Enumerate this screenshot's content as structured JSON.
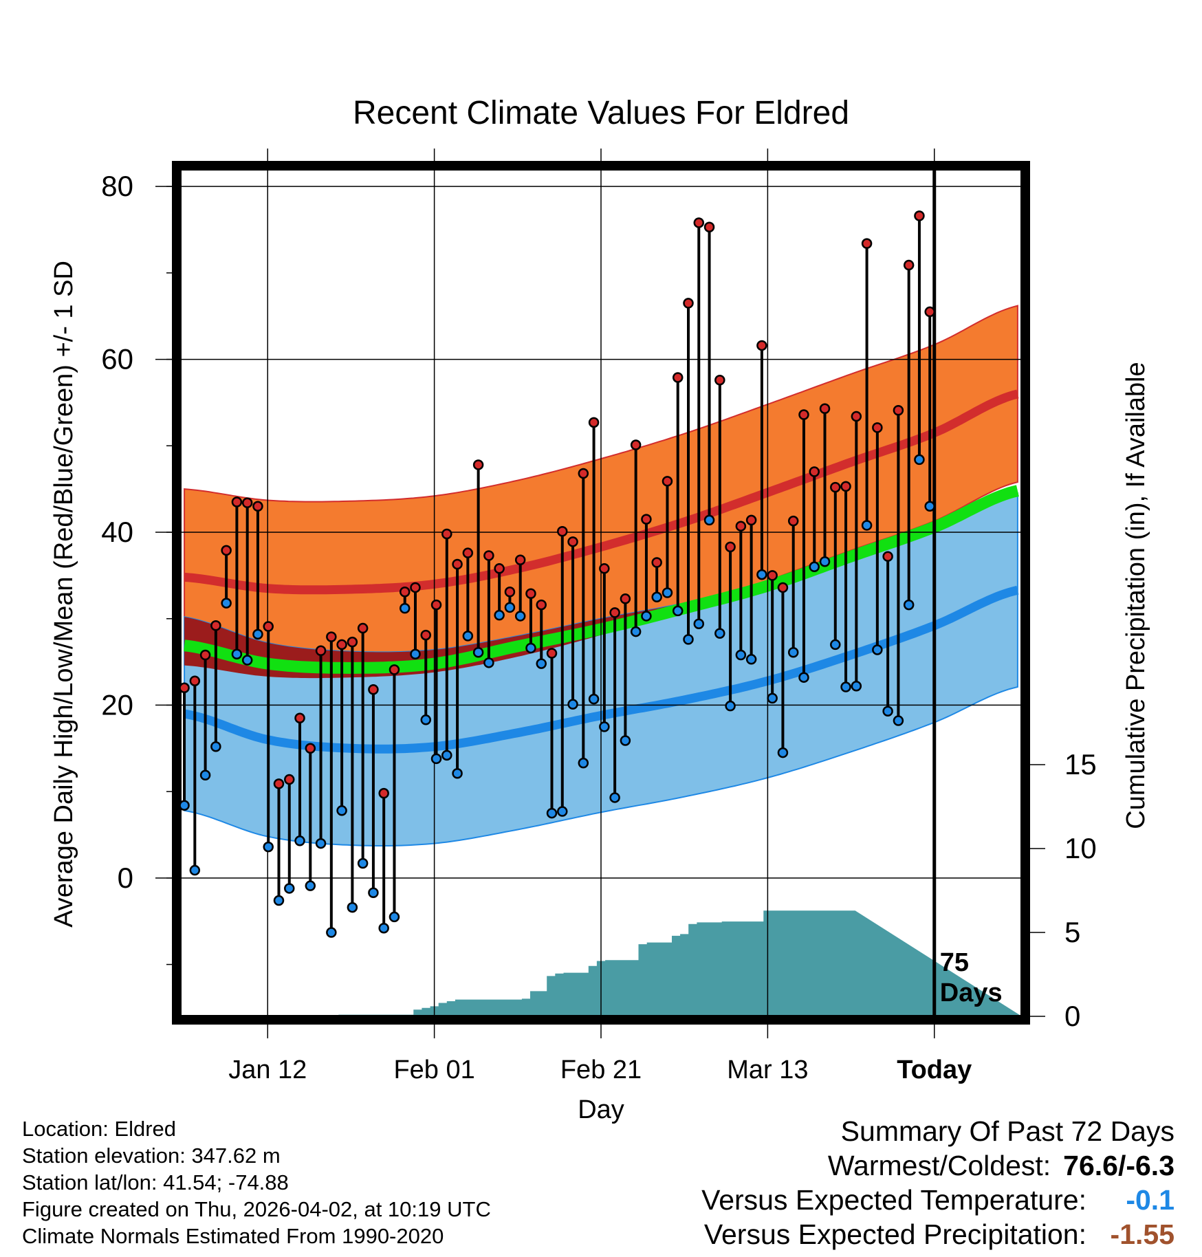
{
  "chart_data": {
    "type": "line",
    "title": "Recent Climate Values For Eldred",
    "xlabel": "Day",
    "ylabel_left": "Average Daily High/Low/Mean (Red/Blue/Green) +/- 1 SD",
    "ylabel_right": "Cumulative Precipitation (in), If Available",
    "ylim": [
      -16,
      82
    ],
    "xlim": [
      -10.5,
      90.5
    ],
    "yticks_left": [
      0,
      20,
      40,
      60,
      80
    ],
    "yticks_right": [
      0,
      5,
      10,
      15
    ],
    "x_ticks": [
      {
        "day": 0,
        "label": "Jan 12"
      },
      {
        "day": 20,
        "label": "Feb 01"
      },
      {
        "day": 40,
        "label": "Feb 21"
      },
      {
        "day": 60,
        "label": "Mar 13"
      },
      {
        "day": 80,
        "label": "Today"
      }
    ],
    "today_label": "75 Days",
    "normals": {
      "days": [
        -10,
        0,
        10,
        20,
        30,
        40,
        50,
        60,
        70,
        80,
        90
      ],
      "high_mean": [
        34.8,
        33.5,
        33.4,
        34.0,
        35.8,
        38.3,
        41.2,
        44.6,
        48.1,
        51.5,
        56.0
      ],
      "high_sd": 10.2,
      "low_mean": [
        19.0,
        16.0,
        15.0,
        15.2,
        16.8,
        18.8,
        20.6,
        22.8,
        25.8,
        29.2,
        33.3
      ],
      "low_sd": 11.2,
      "avg_mean": [
        26.9,
        24.8,
        24.3,
        24.8,
        26.8,
        28.8,
        31.2,
        33.8,
        37.2,
        40.6,
        44.8
      ]
    },
    "series": [
      {
        "name": "High",
        "color": "#d42a2a",
        "values": [
          22.0,
          22.8,
          25.8,
          29.2,
          37.9,
          43.5,
          43.4,
          43.0,
          29.1,
          10.9,
          11.4,
          18.5,
          15.0,
          26.3,
          27.9,
          27.0,
          27.3,
          28.9,
          21.8,
          9.8,
          24.1,
          33.1,
          33.6,
          28.1,
          31.6,
          39.8,
          36.3,
          37.6,
          47.8,
          37.3,
          35.8,
          33.1,
          36.8,
          32.9,
          31.6,
          26.0,
          40.1,
          38.9,
          46.8,
          52.7,
          35.8,
          30.7,
          32.3,
          50.1,
          41.5,
          36.5,
          45.9,
          57.9,
          66.5,
          75.8,
          75.3,
          57.6,
          38.3,
          40.7,
          41.4,
          61.6,
          35.0,
          33.6,
          41.3,
          53.6,
          47.0,
          54.3,
          45.2,
          45.3,
          53.4,
          73.4,
          52.1,
          37.2,
          54.1,
          70.9,
          76.6,
          65.5
        ]
      },
      {
        "name": "Low",
        "color": "#1e88e5",
        "values": [
          8.4,
          0.9,
          11.9,
          15.2,
          31.8,
          25.9,
          25.2,
          28.2,
          3.6,
          -2.6,
          -1.2,
          4.3,
          -0.9,
          4.0,
          -6.3,
          7.8,
          -3.4,
          1.7,
          -1.7,
          -5.8,
          -4.5,
          31.2,
          25.9,
          18.3,
          13.8,
          14.2,
          12.1,
          28.0,
          26.1,
          24.9,
          30.4,
          31.3,
          30.3,
          26.6,
          24.8,
          7.5,
          7.7,
          20.1,
          13.3,
          20.7,
          17.5,
          9.3,
          15.9,
          28.5,
          30.3,
          32.5,
          33.0,
          30.9,
          27.6,
          29.4,
          41.4,
          28.3,
          19.9,
          25.8,
          25.3,
          35.1,
          20.8,
          14.5,
          26.1,
          23.2,
          36.0,
          36.6,
          27.0,
          22.1,
          22.2,
          40.8,
          26.4,
          19.3,
          18.2,
          31.6,
          48.4,
          43.0
        ]
      },
      {
        "name": "Cumulative Precipitation",
        "color": "#4a9ca4",
        "values": [
          0.0,
          0.0,
          0.0,
          0.0,
          0.0,
          0.0,
          0.0,
          0.0,
          0.0,
          0.0,
          0.0,
          0.0,
          0.0,
          0.0,
          0.0,
          0.0,
          0.0,
          0.0,
          0.0,
          0.1,
          0.1,
          0.1,
          0.1,
          0.1,
          0.1,
          0.1,
          0.1,
          0.1,
          0.4,
          0.5,
          0.6,
          0.8,
          0.9,
          1.0,
          1.0,
          1.0,
          1.0,
          1.0,
          1.0,
          1.0,
          1.0,
          1.05,
          1.5,
          1.5,
          2.4,
          2.55,
          2.6,
          2.6,
          2.6,
          3.0,
          3.3,
          3.35,
          3.35,
          3.35,
          3.35,
          4.3,
          4.4,
          4.4,
          4.4,
          4.8,
          4.9,
          5.5,
          5.6,
          5.6,
          5.6,
          5.65,
          5.65,
          5.65,
          5.65,
          5.65,
          6.3,
          6.3,
          6.3,
          6.3,
          6.3,
          6.3,
          6.3,
          6.3,
          6.3,
          6.3,
          6.3
        ]
      }
    ]
  },
  "info": {
    "location": "Location: Eldred",
    "elevation": "Station elevation: 347.62 m",
    "latlon": "Station lat/lon: 41.54; -74.88",
    "created": "Figure created on Thu, 2026-04-02, at 10:19 UTC",
    "normals": "Climate Normals Estimated From 1990-2020"
  },
  "summary": {
    "title": "Summary Of Past 72 Days",
    "warm_cold_label": "Warmest/Coldest:",
    "warm_cold_value": "76.6/-6.3",
    "temp_label": "Versus Expected Temperature:",
    "temp_value": "-0.1",
    "temp_color": "#1e88e5",
    "precip_label": "Versus Expected Precipitation:",
    "precip_value": "-1.55",
    "precip_color": "#a0522d"
  },
  "colors": {
    "high_band": "#f47b2f",
    "high_line": "#d22d2d",
    "overlap_band": "#9b1c1c",
    "low_band": "#7fbfe8",
    "low_line": "#1e88e5",
    "avg_line": "#11e011",
    "precip": "#4a9ca4"
  }
}
